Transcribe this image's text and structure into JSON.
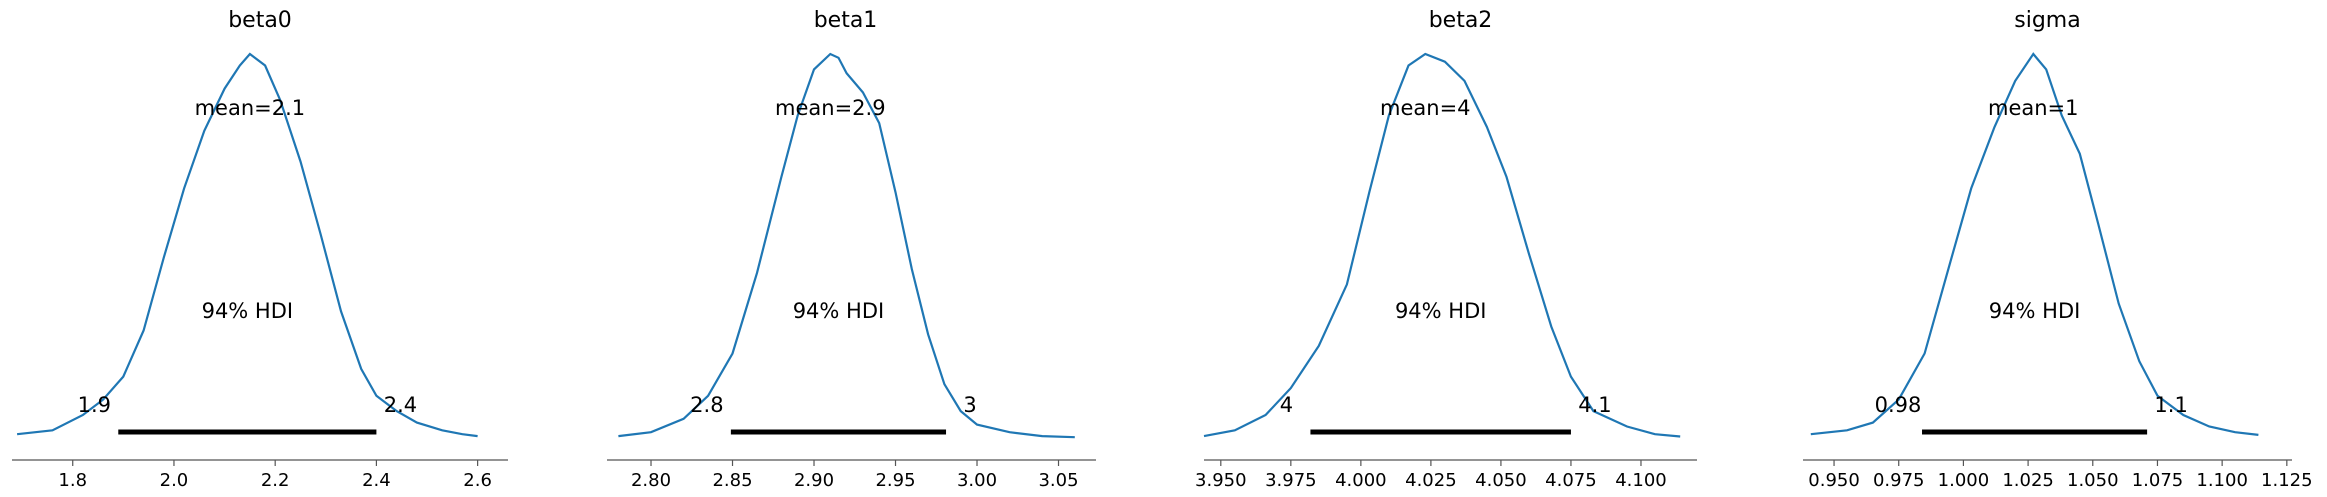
{
  "chart_data": [
    {
      "type": "line",
      "title": "beta0",
      "mean_label": "mean=2.1",
      "hdi_label": "94% HDI",
      "hdi_low": 1.89,
      "hdi_high": 2.4,
      "hdi_low_label": "1.9",
      "hdi_high_label": "2.4",
      "xlim": [
        1.68,
        2.66
      ],
      "xticks": [
        1.8,
        2.0,
        2.2,
        2.4,
        2.6
      ],
      "xtick_labels": [
        "1.8",
        "2.0",
        "2.2",
        "2.4",
        "2.6"
      ],
      "density_x": [
        1.69,
        1.76,
        1.82,
        1.86,
        1.9,
        1.94,
        1.98,
        2.02,
        2.06,
        2.1,
        2.13,
        2.15,
        2.18,
        2.21,
        2.25,
        2.29,
        2.33,
        2.37,
        2.4,
        2.44,
        2.48,
        2.53,
        2.57,
        2.6
      ],
      "density_y": [
        0.01,
        0.02,
        0.06,
        0.1,
        0.16,
        0.28,
        0.47,
        0.65,
        0.8,
        0.91,
        0.97,
        1.0,
        0.97,
        0.88,
        0.72,
        0.53,
        0.33,
        0.18,
        0.11,
        0.07,
        0.04,
        0.02,
        0.01,
        0.005
      ]
    },
    {
      "type": "line",
      "title": "beta1",
      "mean_label": "mean=2.9",
      "hdi_label": "94% HDI",
      "hdi_low": 2.849,
      "hdi_high": 2.981,
      "hdi_low_label": "2.8",
      "hdi_high_label": "3",
      "xlim": [
        2.773,
        3.073
      ],
      "xticks": [
        2.8,
        2.85,
        2.9,
        2.95,
        3.0,
        3.05
      ],
      "xtick_labels": [
        "2.80",
        "2.85",
        "2.90",
        "2.95",
        "3.00",
        "3.05"
      ],
      "density_x": [
        2.78,
        2.8,
        2.82,
        2.835,
        2.85,
        2.865,
        2.88,
        2.89,
        2.9,
        2.91,
        2.915,
        2.92,
        2.93,
        2.94,
        2.95,
        2.96,
        2.97,
        2.98,
        2.99,
        3.0,
        3.02,
        3.04,
        3.06
      ],
      "density_y": [
        0.005,
        0.015,
        0.05,
        0.11,
        0.22,
        0.43,
        0.68,
        0.84,
        0.96,
        1.0,
        0.99,
        0.95,
        0.9,
        0.82,
        0.64,
        0.44,
        0.27,
        0.14,
        0.07,
        0.035,
        0.015,
        0.005,
        0.002
      ]
    },
    {
      "type": "line",
      "title": "beta2",
      "mean_label": "mean=4",
      "hdi_label": "94% HDI",
      "hdi_low": 3.982,
      "hdi_high": 4.075,
      "hdi_low_label": "4",
      "hdi_high_label": "4.1",
      "xlim": [
        3.944,
        4.12
      ],
      "xticks": [
        3.95,
        3.975,
        4.0,
        4.025,
        4.05,
        4.075,
        4.1
      ],
      "xtick_labels": [
        "3.950",
        "3.975",
        "4.000",
        "4.025",
        "4.050",
        "4.075",
        "4.100"
      ],
      "density_x": [
        3.944,
        3.955,
        3.966,
        3.975,
        3.985,
        3.995,
        4.003,
        4.01,
        4.017,
        4.023,
        4.03,
        4.037,
        4.045,
        4.052,
        4.06,
        4.068,
        4.075,
        4.083,
        4.095,
        4.105,
        4.114
      ],
      "density_y": [
        0.005,
        0.02,
        0.06,
        0.13,
        0.24,
        0.4,
        0.64,
        0.84,
        0.97,
        1.0,
        0.98,
        0.93,
        0.81,
        0.68,
        0.48,
        0.29,
        0.16,
        0.07,
        0.03,
        0.01,
        0.004
      ]
    },
    {
      "type": "line",
      "title": "sigma",
      "mean_label": "mean=1",
      "hdi_label": "94% HDI",
      "hdi_low": 0.984,
      "hdi_high": 1.071,
      "hdi_low_label": "0.98",
      "hdi_high_label": "1.1",
      "xlim": [
        0.938,
        1.127
      ],
      "xticks": [
        0.95,
        0.975,
        1.0,
        1.025,
        1.05,
        1.075,
        1.1,
        1.125
      ],
      "xtick_labels": [
        "0.950",
        "0.975",
        "1.000",
        "1.025",
        "1.050",
        "1.075",
        "1.100",
        "1.125"
      ],
      "density_x": [
        0.941,
        0.955,
        0.965,
        0.975,
        0.985,
        0.995,
        1.003,
        1.012,
        1.02,
        1.027,
        1.032,
        1.038,
        1.045,
        1.052,
        1.06,
        1.068,
        1.075,
        1.085,
        1.095,
        1.105,
        1.114
      ],
      "density_y": [
        0.01,
        0.02,
        0.04,
        0.1,
        0.22,
        0.46,
        0.65,
        0.81,
        0.93,
        1.0,
        0.96,
        0.84,
        0.74,
        0.56,
        0.35,
        0.2,
        0.11,
        0.06,
        0.03,
        0.015,
        0.008
      ]
    }
  ]
}
